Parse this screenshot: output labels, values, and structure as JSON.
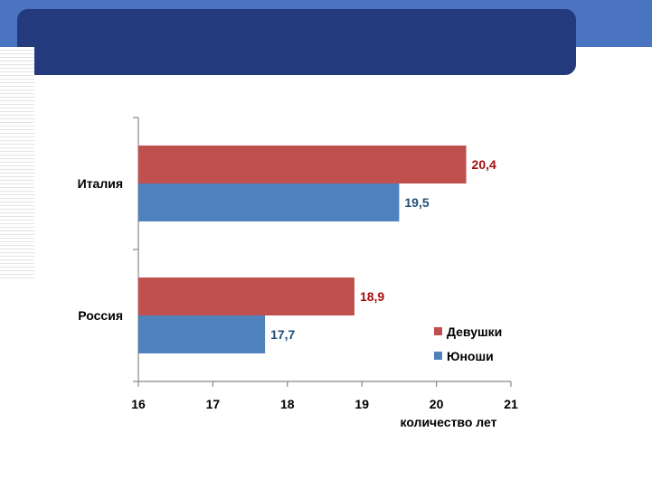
{
  "colors": {
    "band": "#4a74c0",
    "banner": "#233a7c",
    "girls": "#c0504d",
    "boys": "#4f81bd",
    "girls_label": "#a50f12",
    "boys_label": "#1f4e79"
  },
  "chart_data": {
    "type": "bar",
    "orientation": "horizontal",
    "categories": [
      "Италия",
      "Россия"
    ],
    "series": [
      {
        "name": "Девушки",
        "values": [
          20.4,
          18.9
        ],
        "labels": [
          "20,4",
          "18,9"
        ]
      },
      {
        "name": "Юноши",
        "values": [
          19.5,
          17.7
        ],
        "labels": [
          "19,5",
          "17,7"
        ]
      }
    ],
    "xlabel": "количество лет",
    "xlim": [
      16,
      21
    ],
    "xticks": [
      "16",
      "17",
      "18",
      "19",
      "20",
      "21"
    ],
    "grid": false,
    "legend": "bottom-right"
  }
}
